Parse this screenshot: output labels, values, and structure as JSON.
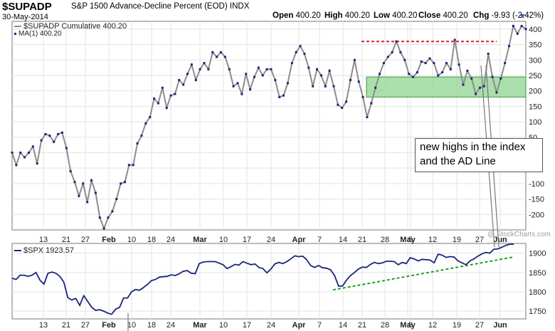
{
  "header": {
    "symbol": "$SUPADP",
    "description": "S&P 1500 Advance-Decline Percent (EOD)",
    "exchange": "INDX",
    "date": "30-May-2014",
    "open_label": "Open",
    "open": "400.20",
    "high_label": "High",
    "high": "400.20",
    "low_label": "Low",
    "low": "400.20",
    "close_label": "Close",
    "close": "400.20",
    "chg_label": "Chg",
    "chg": "-9.93 (-2.42%)"
  },
  "watermark": "@ StockCharts.com",
  "chart_data": [
    {
      "type": "line",
      "name": "upper",
      "legend": [
        "$SUPADP Cumulative 400.20",
        "MA(1) 400.20"
      ],
      "ylim": [
        -250,
        425
      ],
      "yticks": [
        -200,
        -150,
        -100,
        -50,
        0,
        50,
        100,
        150,
        200,
        250,
        300,
        350,
        400
      ],
      "xticks": [
        "13",
        "21",
        "27",
        "Feb",
        "10",
        "18",
        "24",
        "Mar",
        "10",
        "17",
        "24",
        "Apr",
        "7",
        "14",
        "21",
        "28",
        "May",
        "5",
        "12",
        "19",
        "27",
        "Jun"
      ],
      "values": [
        0,
        -40,
        0,
        -15,
        0,
        20,
        -35,
        40,
        60,
        55,
        35,
        60,
        65,
        15,
        -60,
        -95,
        -140,
        -100,
        -160,
        -90,
        -130,
        -210,
        -245,
        -210,
        -190,
        -150,
        -100,
        -95,
        -40,
        -40,
        30,
        55,
        95,
        115,
        175,
        160,
        210,
        145,
        185,
        190,
        235,
        220,
        255,
        285,
        235,
        270,
        290,
        270,
        325,
        310,
        325,
        310,
        270,
        215,
        225,
        190,
        255,
        205,
        245,
        275,
        250,
        270,
        270,
        235,
        180,
        185,
        225,
        290,
        325,
        345,
        320,
        275,
        215,
        270,
        250,
        215,
        265,
        215,
        155,
        145,
        165,
        235,
        300,
        230,
        180,
        115,
        160,
        210,
        255,
        290,
        310,
        325,
        360,
        325,
        300,
        255,
        245,
        260,
        295,
        290,
        305,
        290,
        250,
        260,
        290,
        270,
        365,
        285,
        220,
        265,
        240,
        190,
        210,
        215,
        320,
        245,
        195,
        240,
        290,
        345,
        410,
        385,
        410,
        400
      ],
      "resistance": 360,
      "zone": [
        180,
        245
      ],
      "annotation": [
        "new highs in the index",
        "and the AD Line"
      ]
    },
    {
      "type": "line",
      "name": "lower",
      "legend": [
        "$SPX 1923.57"
      ],
      "ylim": [
        1730,
        1925
      ],
      "yticks": [
        1750,
        1800,
        1850,
        1900
      ],
      "xticks": [
        "13",
        "21",
        "27",
        "Feb",
        "10",
        "18",
        "24",
        "Mar",
        "10",
        "17",
        "24",
        "Apr",
        "7",
        "14",
        "21",
        "28",
        "May",
        "5",
        "12",
        "19",
        "27",
        "Jun"
      ],
      "values": [
        1835,
        1832,
        1843,
        1843,
        1840,
        1843,
        1850,
        1830,
        1820,
        1848,
        1851,
        1848,
        1840,
        1825,
        1785,
        1779,
        1783,
        1765,
        1790,
        1775,
        1760,
        1752,
        1754,
        1750,
        1745,
        1742,
        1755,
        1760,
        1784,
        1784,
        1800,
        1806,
        1804,
        1811,
        1819,
        1829,
        1832,
        1838,
        1839,
        1840,
        1844,
        1842,
        1847,
        1853,
        1855,
        1848,
        1847,
        1873,
        1877,
        1878,
        1878,
        1878,
        1874,
        1870,
        1860,
        1865,
        1871,
        1869,
        1878,
        1874,
        1870,
        1872,
        1863,
        1860,
        1849,
        1859,
        1872,
        1876,
        1873,
        1878,
        1885,
        1893,
        1891,
        1892,
        1883,
        1868,
        1863,
        1868,
        1862,
        1861,
        1857,
        1842,
        1815,
        1815,
        1830,
        1842,
        1850,
        1859,
        1864,
        1863,
        1871,
        1876,
        1873,
        1875,
        1879,
        1879,
        1878,
        1870,
        1876,
        1873,
        1888,
        1885,
        1880,
        1884,
        1883,
        1882,
        1875,
        1897,
        1895,
        1889,
        1891,
        1890,
        1880,
        1875,
        1870,
        1880,
        1885,
        1892,
        1898,
        1902,
        1900,
        1910,
        1911,
        1915,
        1920,
        1923,
        1923
      ],
      "trendline_start": 1805,
      "trendline_end": 1890
    }
  ],
  "colors": {
    "line": "#8c8c8c",
    "markers": "#1a237e",
    "spx": "#1a237e",
    "resistance": "#e01f1f",
    "zone_fill": "#8fd48f",
    "zone_stroke": "#3c9a3c",
    "trendline": "#1fa01f",
    "grid": "#e3e3e3"
  }
}
